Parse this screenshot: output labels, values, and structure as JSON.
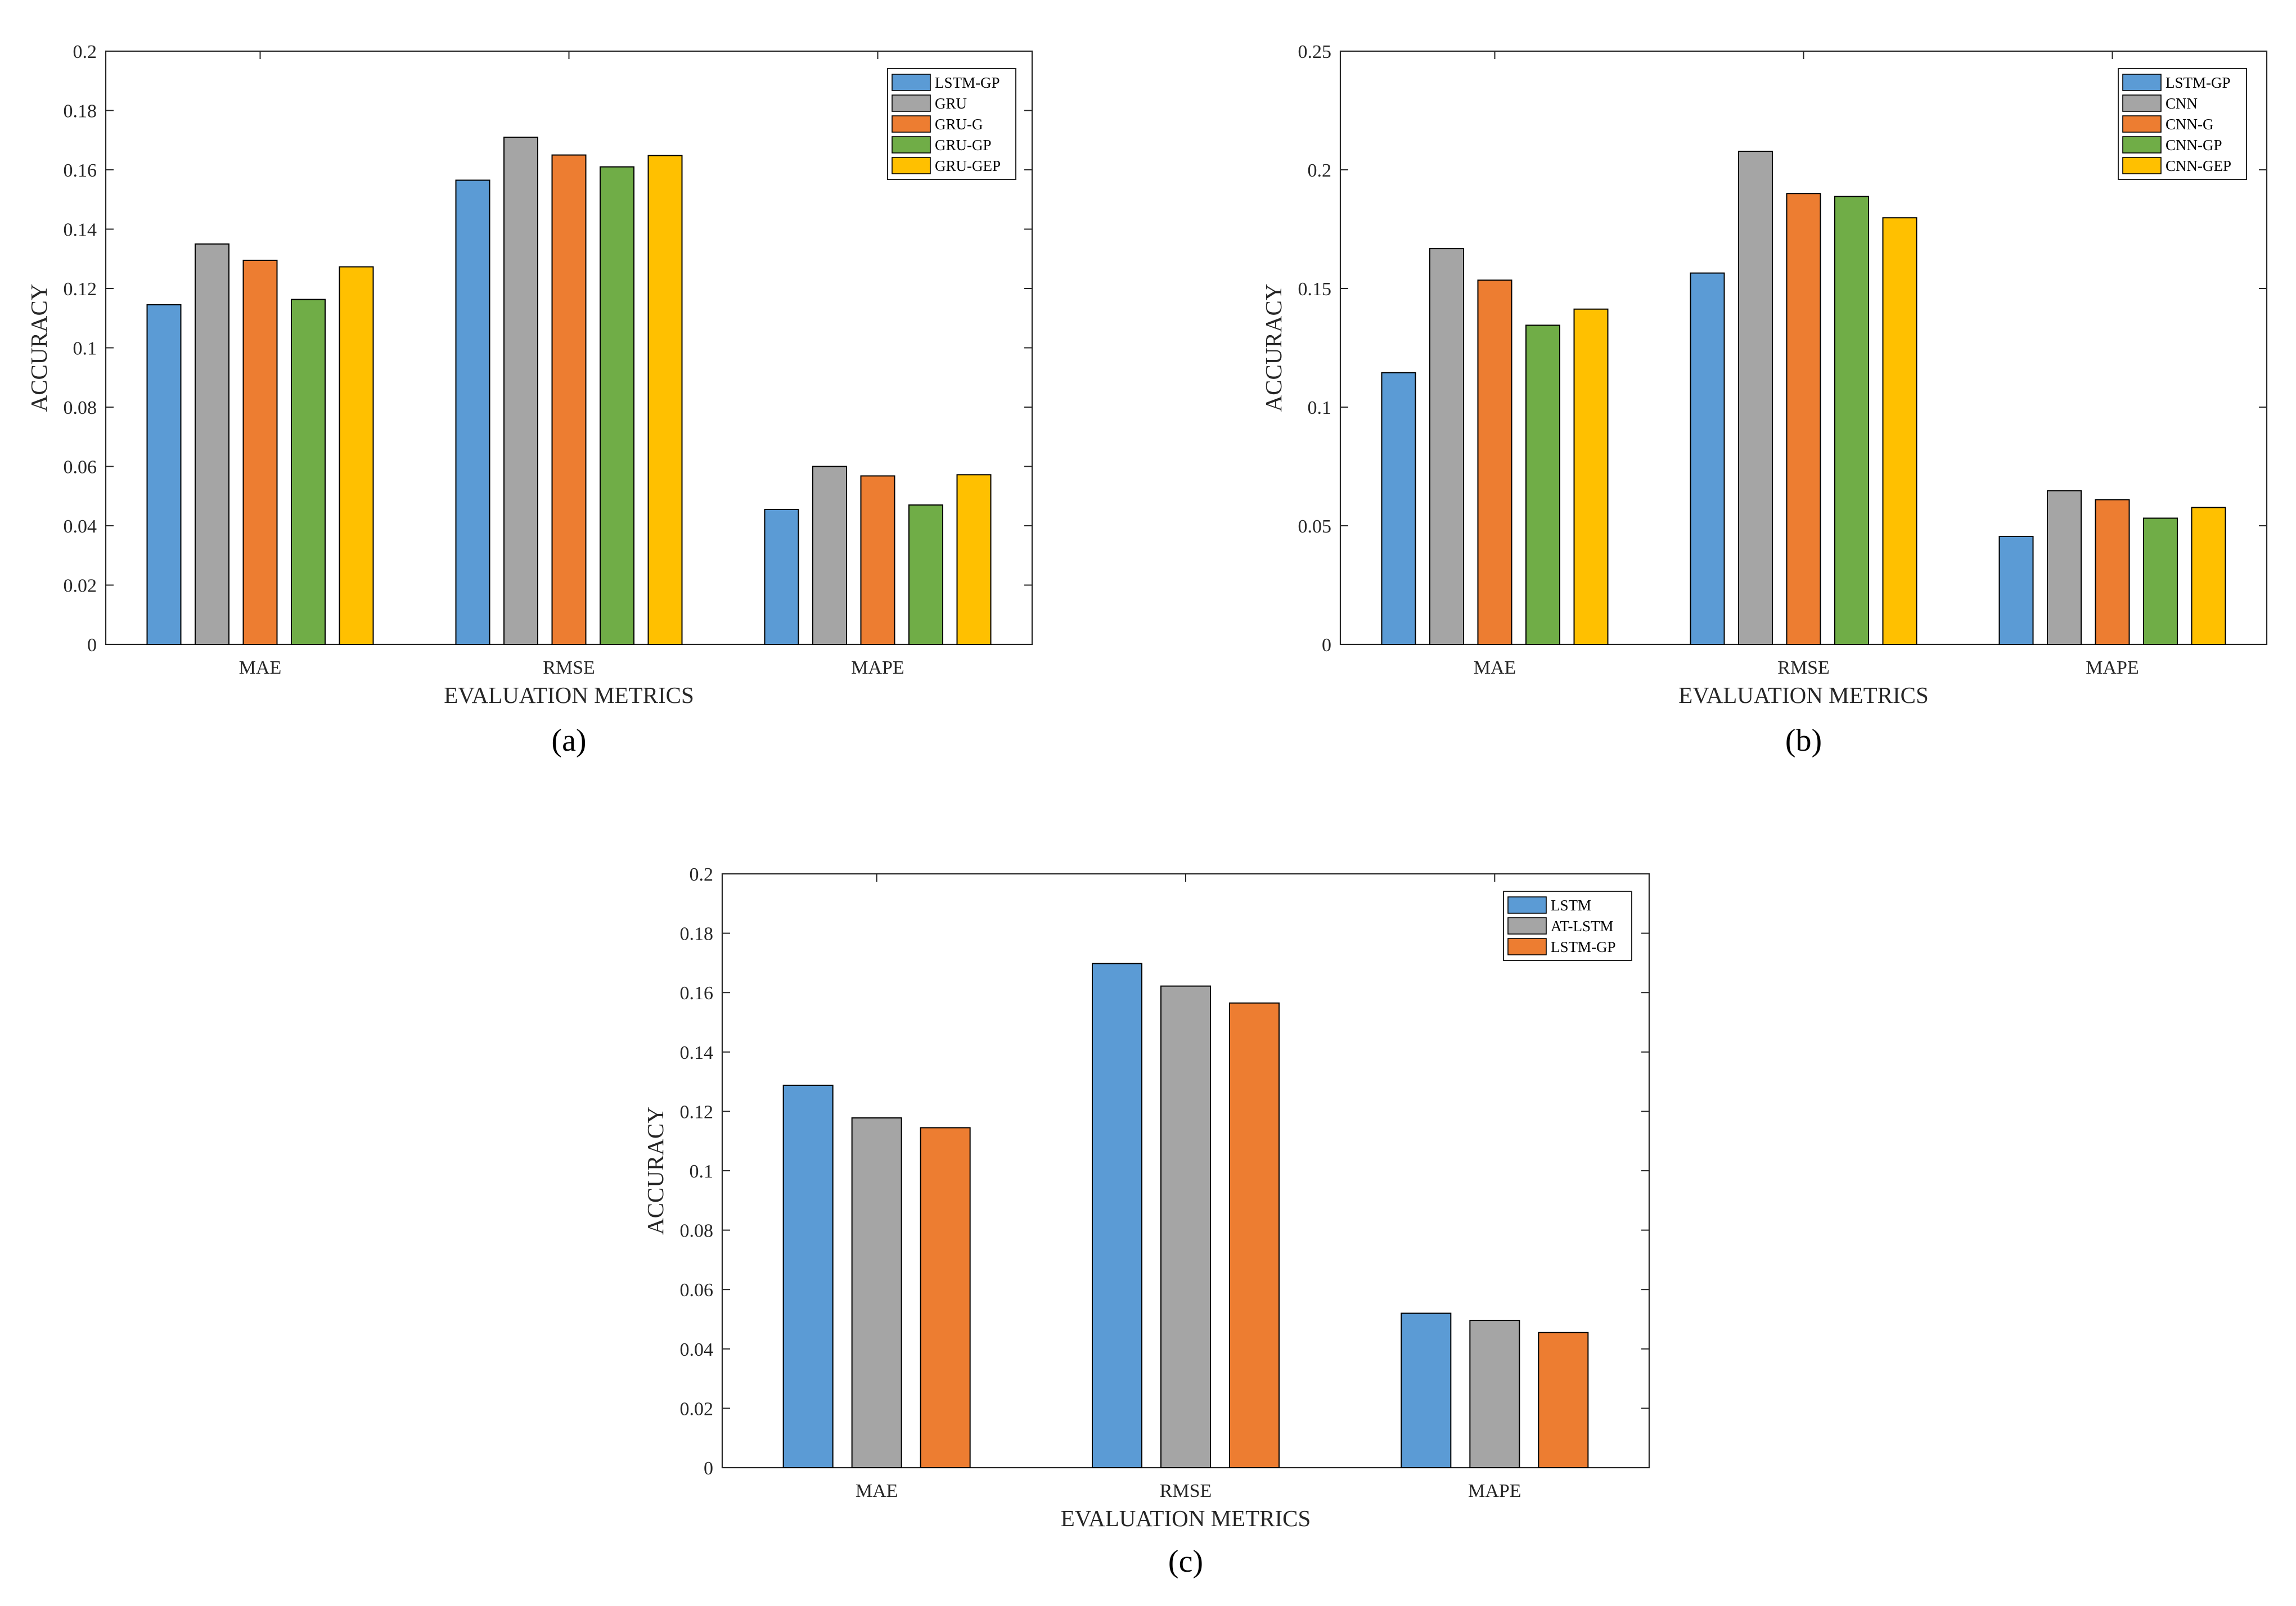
{
  "chart_data": [
    {
      "type": "bar",
      "panel_label": "(a)",
      "title": "",
      "xlabel": "EVALUATION METRICS",
      "ylabel": "ACCURACY",
      "categories": [
        "MAE",
        "RMSE",
        "MAPE"
      ],
      "ylim": [
        0,
        0.2
      ],
      "yticks": [
        0,
        0.02,
        0.04,
        0.06,
        0.08,
        0.1,
        0.12,
        0.14,
        0.16,
        0.18,
        0.2
      ],
      "ytick_labels": [
        "0",
        "0.02",
        "0.04",
        "0.06",
        "0.08",
        "0.1",
        "0.12",
        "0.14",
        "0.16",
        "0.18",
        "0.2"
      ],
      "legend_position": "top-right",
      "grid": false,
      "series": [
        {
          "name": "LSTM-GP",
          "color": "#5b9bd5",
          "values": [
            0.1145,
            0.1565,
            0.0455
          ]
        },
        {
          "name": "GRU",
          "color": "#a5a5a5",
          "values": [
            0.135,
            0.171,
            0.06
          ]
        },
        {
          "name": "GRU-G",
          "color": "#ed7d31",
          "values": [
            0.1295,
            0.165,
            0.0568
          ]
        },
        {
          "name": "GRU-GP",
          "color": "#70ad47",
          "values": [
            0.1163,
            0.161,
            0.047
          ]
        },
        {
          "name": "GRU-GEP",
          "color": "#ffc000",
          "values": [
            0.1273,
            0.1648,
            0.0572
          ]
        }
      ]
    },
    {
      "type": "bar",
      "panel_label": "(b)",
      "title": "",
      "xlabel": "EVALUATION METRICS",
      "ylabel": "ACCURACY",
      "categories": [
        "MAE",
        "RMSE",
        "MAPE"
      ],
      "ylim": [
        0,
        0.25
      ],
      "yticks": [
        0,
        0.05,
        0.1,
        0.15,
        0.2,
        0.25
      ],
      "ytick_labels": [
        "0",
        "0.05",
        "0.1",
        "0.15",
        "0.2",
        "0.25"
      ],
      "legend_position": "top-right",
      "grid": false,
      "series": [
        {
          "name": "LSTM-GP",
          "color": "#5b9bd5",
          "values": [
            0.1145,
            0.1565,
            0.0455
          ]
        },
        {
          "name": "CNN",
          "color": "#a5a5a5",
          "values": [
            0.1668,
            0.2078,
            0.0648
          ]
        },
        {
          "name": "CNN-G",
          "color": "#ed7d31",
          "values": [
            0.1535,
            0.19,
            0.061
          ]
        },
        {
          "name": "CNN-GP",
          "color": "#70ad47",
          "values": [
            0.1345,
            0.1888,
            0.0532
          ]
        },
        {
          "name": "CNN-GEP",
          "color": "#ffc000",
          "values": [
            0.1413,
            0.1798,
            0.0577
          ]
        }
      ]
    },
    {
      "type": "bar",
      "panel_label": "(c)",
      "title": "",
      "xlabel": "EVALUATION METRICS",
      "ylabel": "ACCURACY",
      "categories": [
        "MAE",
        "RMSE",
        "MAPE"
      ],
      "ylim": [
        0,
        0.2
      ],
      "yticks": [
        0,
        0.02,
        0.04,
        0.06,
        0.08,
        0.1,
        0.12,
        0.14,
        0.16,
        0.18,
        0.2
      ],
      "ytick_labels": [
        "0",
        "0.02",
        "0.04",
        "0.06",
        "0.08",
        "0.1",
        "0.12",
        "0.14",
        "0.16",
        "0.18",
        "0.2"
      ],
      "legend_position": "top-right",
      "grid": false,
      "series": [
        {
          "name": "LSTM",
          "color": "#5b9bd5",
          "values": [
            0.1288,
            0.1698,
            0.052
          ]
        },
        {
          "name": "AT-LSTM",
          "color": "#a5a5a5",
          "values": [
            0.1178,
            0.1622,
            0.0496
          ]
        },
        {
          "name": "LSTM-GP",
          "color": "#ed7d31",
          "values": [
            0.1145,
            0.1565,
            0.0455
          ]
        }
      ]
    }
  ]
}
